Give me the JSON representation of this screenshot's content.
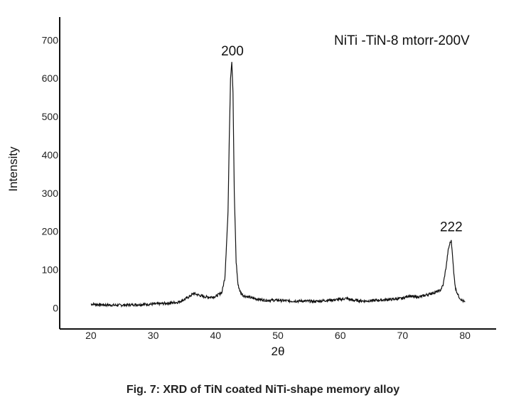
{
  "chart_data": {
    "type": "line",
    "xlabel": "2θ",
    "ylabel": "Intensity",
    "xlim": [
      15,
      85
    ],
    "ylim": [
      -55,
      760
    ],
    "x_ticks": [
      20,
      30,
      40,
      50,
      60,
      70,
      80
    ],
    "y_ticks": [
      0,
      100,
      200,
      300,
      400,
      500,
      600,
      700
    ],
    "grid": false,
    "series": [
      {
        "x": [
          20,
          22,
          24,
          26,
          28,
          30,
          32,
          34,
          35,
          36,
          36.5,
          37,
          38,
          39,
          40,
          41,
          41.5,
          42,
          42.2,
          42.4,
          42.6,
          42.8,
          43,
          43.3,
          43.6,
          44,
          44.5,
          45,
          46,
          48,
          50,
          52,
          54,
          56,
          58,
          60,
          61,
          62,
          64,
          66,
          68,
          70,
          71,
          72,
          73,
          74,
          75,
          76,
          76.5,
          77,
          77.3,
          77.6,
          77.8,
          78,
          78.2,
          78.5,
          79,
          79.5,
          80
        ],
        "y": [
          10,
          8,
          7,
          8,
          9,
          10,
          12,
          15,
          22,
          32,
          38,
          35,
          30,
          28,
          30,
          40,
          80,
          250,
          450,
          600,
          645,
          560,
          300,
          120,
          60,
          40,
          32,
          30,
          25,
          20,
          20,
          18,
          18,
          17,
          20,
          22,
          25,
          20,
          18,
          20,
          22,
          25,
          32,
          28,
          30,
          35,
          40,
          45,
          60,
          110,
          150,
          170,
          175,
          140,
          90,
          50,
          30,
          20,
          15
        ]
      }
    ],
    "annotations": [
      {
        "text": "200",
        "x": 42.7,
        "y": 660
      },
      {
        "text": "222",
        "x": 77.8,
        "y": 200
      }
    ]
  },
  "sample_label": "NiTi -TiN-8 mtorr-200V",
  "caption": "Fig. 7: XRD of TiN coated NiTi-shape memory alloy"
}
